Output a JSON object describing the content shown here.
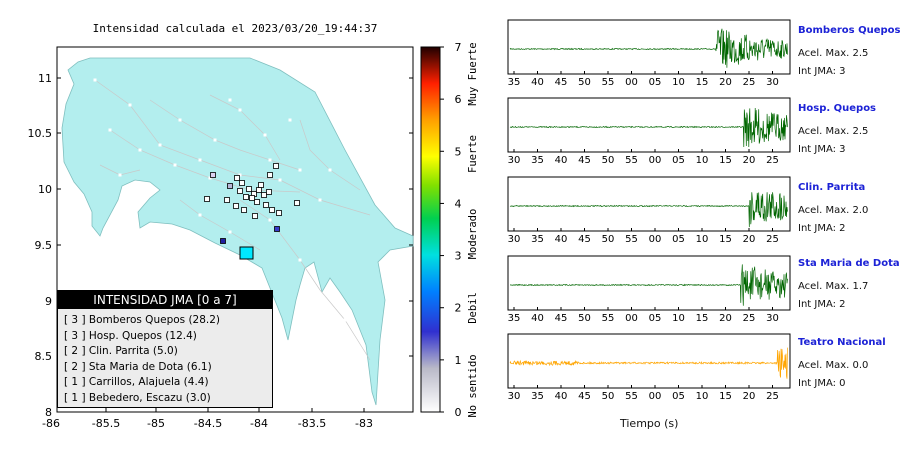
{
  "map": {
    "title": "Intensidad calculada el 2023/03/20_19:44:37",
    "lat_ticks": [
      "11",
      "10.5",
      "10",
      "9.5",
      "9",
      "8.5",
      "8"
    ],
    "lon_ticks": [
      "-86",
      "-85.5",
      "-85",
      "-84.5",
      "-84",
      "-83.5",
      "-83"
    ],
    "sea_color": "#ffffff",
    "land_color": "#aeeeee"
  },
  "colorbar": {
    "ticks": [
      "0",
      "1",
      "2",
      "3",
      "4",
      "5",
      "6",
      "7"
    ],
    "category_labels": [
      "No sentido",
      "Debil",
      "Moderado",
      "Fuerte",
      "Muy Fuerte"
    ]
  },
  "legend": {
    "header": "INTENSIDAD JMA [0 a 7]",
    "items": [
      "[ 3 ] Bomberos Quepos (28.2)",
      "[ 3 ] Hosp. Quepos (12.4)",
      "[ 2 ] Clin. Parrita (5.0)",
      "[ 2 ] Sta Maria de Dota (6.1)",
      "[ 1 ] Carrillos, Alajuela (4.4)",
      "[ 1 ] Bebedero, Escazu (3.0)"
    ]
  },
  "traces": [
    {
      "station": "Bomberos Quepos",
      "accel": "Acel. Max. 2.5",
      "jma": "Int JMA: 3",
      "color": "#006600",
      "ticks": [
        "35",
        "40",
        "45",
        "50",
        "55",
        "00",
        "05",
        "10",
        "15",
        "20",
        "25",
        "30"
      ],
      "burst_start": 0.74
    },
    {
      "station": "Hosp. Quepos",
      "accel": "Acel. Max. 2.5",
      "jma": "Int JMA: 3",
      "color": "#006600",
      "ticks": [
        "30",
        "35",
        "40",
        "45",
        "50",
        "55",
        "00",
        "05",
        "10",
        "15",
        "20",
        "25"
      ],
      "burst_start": 0.84
    },
    {
      "station": "Clin. Parrita",
      "accel": "Acel. Max. 2.0",
      "jma": "Int JMA: 2",
      "color": "#006600",
      "ticks": [
        "30",
        "35",
        "40",
        "45",
        "50",
        "55",
        "00",
        "05",
        "10",
        "15",
        "20",
        "25"
      ],
      "burst_start": 0.86
    },
    {
      "station": "Sta Maria de Dota",
      "accel": "Acel. Max. 1.7",
      "jma": "Int JMA: 2",
      "color": "#006600",
      "ticks": [
        "35",
        "40",
        "45",
        "50",
        "55",
        "00",
        "05",
        "10",
        "15",
        "20",
        "25",
        "30"
      ],
      "burst_start": 0.83
    },
    {
      "station": "Teatro Nacional",
      "accel": "Acel. Max. 0.0",
      "jma": "Int JMA: 0",
      "color": "#ffa500",
      "ticks": [
        "30",
        "35",
        "40",
        "45",
        "50",
        "55",
        "00",
        "05",
        "10",
        "15",
        "20",
        "25"
      ],
      "burst_start": 0.96
    }
  ],
  "xaxis_label": "Tiempo (s)"
}
